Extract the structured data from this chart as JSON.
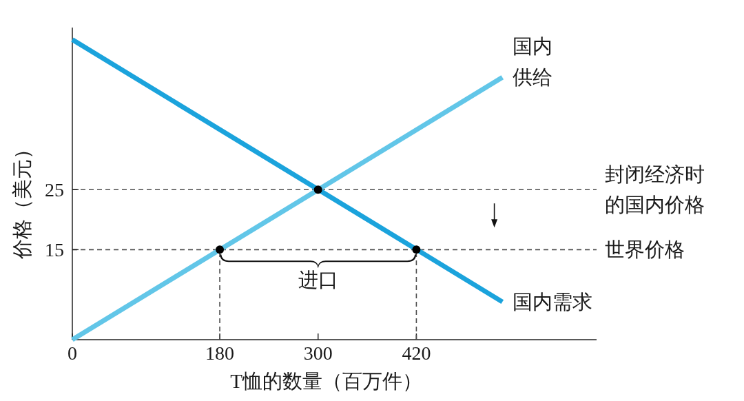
{
  "chart_data": {
    "type": "line",
    "xlabel": "T恤的数量（百万件）",
    "ylabel": "价格（美元）",
    "xlim": [
      0,
      640
    ],
    "ylim": [
      0,
      52
    ],
    "xticks": [
      0,
      180,
      300,
      420
    ],
    "yticks": [
      15,
      25
    ],
    "series": [
      {
        "name": "国内需求",
        "color": "#1ba3dc",
        "x": [
          0,
          525
        ],
        "values": [
          50,
          6.3
        ]
      },
      {
        "name": "国内供给",
        "color": "#62c6e8",
        "x": [
          0,
          525
        ],
        "values": [
          0,
          43.7
        ]
      },
      {
        "color": "#4d4d4d",
        "x": [
          180,
          180
        ],
        "values": [
          0,
          15
        ],
        "line_style": "dashed"
      },
      {
        "color": "#4d4d4d",
        "x": [
          420,
          420
        ],
        "values": [
          0,
          15
        ],
        "line_style": "dashed"
      },
      {
        "type": "scatter",
        "color": "#000000",
        "x": [
          180,
          300,
          420
        ],
        "values": [
          15,
          25,
          15
        ],
        "marker": "circle"
      }
    ],
    "ref_lines": [
      {
        "axis": "y",
        "value": 25,
        "label": "封闭经济时的国内价格",
        "color": "#4d4d4d",
        "line_style": "dashed"
      },
      {
        "axis": "y",
        "value": 15,
        "label": "世界价格",
        "color": "#4d4d4d",
        "line_style": "dashed"
      }
    ],
    "annotations": [
      {
        "text": "进口",
        "x": 300,
        "y": 15
      }
    ]
  }
}
